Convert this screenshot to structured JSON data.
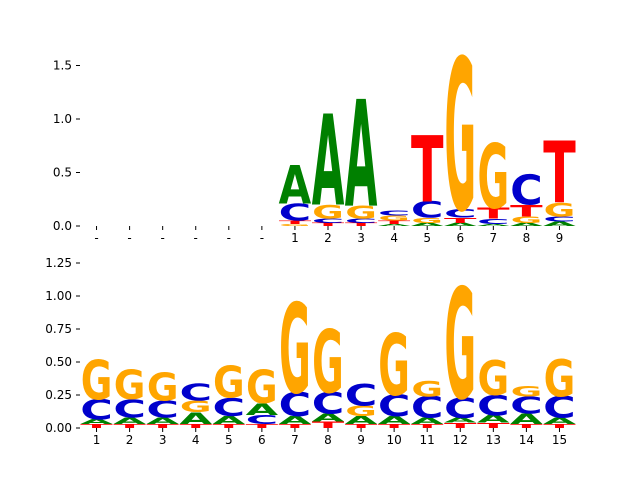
{
  "figure": {
    "background": "#ffffff"
  },
  "letter_colors": {
    "A": "#008000",
    "C": "#0000cc",
    "G": "#ffa500",
    "T": "#ff0000"
  },
  "chart_data": [
    {
      "type": "sequence_logo",
      "name": "top-sequence-logo",
      "title": "",
      "xlabel": "",
      "ylabel": "",
      "ylim": [
        0,
        1.66
      ],
      "grid": false,
      "legend": false,
      "ytick_values": [
        0,
        0.5,
        1.0,
        1.5
      ],
      "ytick_labels": [
        "0.0",
        "0.5",
        "1.0",
        "1.5"
      ],
      "columns": [
        {
          "label": "-",
          "stack": []
        },
        {
          "label": "-",
          "stack": []
        },
        {
          "label": "-",
          "stack": []
        },
        {
          "label": "-",
          "stack": []
        },
        {
          "label": "-",
          "stack": []
        },
        {
          "label": "-",
          "stack": []
        },
        {
          "label": "1",
          "stack": [
            {
              "letter": "G",
              "value": 0.02
            },
            {
              "letter": "T",
              "value": 0.03
            },
            {
              "letter": "C",
              "value": 0.16
            },
            {
              "letter": "A",
              "value": 0.36
            }
          ]
        },
        {
          "label": "2",
          "stack": [
            {
              "letter": "T",
              "value": 0.03
            },
            {
              "letter": "C",
              "value": 0.04
            },
            {
              "letter": "G",
              "value": 0.13
            },
            {
              "letter": "A",
              "value": 0.85
            }
          ]
        },
        {
          "label": "3",
          "stack": [
            {
              "letter": "T",
              "value": 0.03
            },
            {
              "letter": "C",
              "value": 0.04
            },
            {
              "letter": "G",
              "value": 0.12
            },
            {
              "letter": "A",
              "value": 1.0
            }
          ]
        },
        {
          "label": "4",
          "stack": [
            {
              "letter": "A",
              "value": 0.02
            },
            {
              "letter": "T",
              "value": 0.03
            },
            {
              "letter": "G",
              "value": 0.05
            },
            {
              "letter": "C",
              "value": 0.05
            }
          ]
        },
        {
          "label": "5",
          "stack": [
            {
              "letter": "A",
              "value": 0.03
            },
            {
              "letter": "G",
              "value": 0.05
            },
            {
              "letter": "C",
              "value": 0.15
            },
            {
              "letter": "T",
              "value": 0.62
            }
          ]
        },
        {
          "label": "6",
          "stack": [
            {
              "letter": "A",
              "value": 0.03
            },
            {
              "letter": "T",
              "value": 0.05
            },
            {
              "letter": "C",
              "value": 0.08
            },
            {
              "letter": "G",
              "value": 1.42
            }
          ]
        },
        {
          "label": "7",
          "stack": [
            {
              "letter": "A",
              "value": 0.02
            },
            {
              "letter": "C",
              "value": 0.05
            },
            {
              "letter": "T",
              "value": 0.1
            },
            {
              "letter": "G",
              "value": 0.6
            }
          ]
        },
        {
          "label": "8",
          "stack": [
            {
              "letter": "A",
              "value": 0.03
            },
            {
              "letter": "G",
              "value": 0.06
            },
            {
              "letter": "T",
              "value": 0.11
            },
            {
              "letter": "C",
              "value": 0.28
            }
          ]
        },
        {
          "label": "9",
          "stack": [
            {
              "letter": "A",
              "value": 0.04
            },
            {
              "letter": "C",
              "value": 0.05
            },
            {
              "letter": "G",
              "value": 0.13
            },
            {
              "letter": "T",
              "value": 0.58
            }
          ]
        }
      ]
    },
    {
      "type": "sequence_logo",
      "name": "bottom-sequence-logo",
      "title": "",
      "xlabel": "",
      "ylabel": "",
      "ylim": [
        0,
        1.3
      ],
      "grid": false,
      "legend": false,
      "ytick_values": [
        0,
        0.25,
        0.5,
        0.75,
        1.0,
        1.25
      ],
      "ytick_labels": [
        "0.00",
        "0.25",
        "0.50",
        "0.75",
        "1.00",
        "1.25"
      ],
      "columns": [
        {
          "label": "1",
          "stack": [
            {
              "letter": "T",
              "value": 0.03
            },
            {
              "letter": "A",
              "value": 0.04
            },
            {
              "letter": "C",
              "value": 0.15
            },
            {
              "letter": "G",
              "value": 0.3
            }
          ]
        },
        {
          "label": "2",
          "stack": [
            {
              "letter": "T",
              "value": 0.03
            },
            {
              "letter": "A",
              "value": 0.05
            },
            {
              "letter": "C",
              "value": 0.14
            },
            {
              "letter": "G",
              "value": 0.22
            }
          ]
        },
        {
          "label": "3",
          "stack": [
            {
              "letter": "T",
              "value": 0.03
            },
            {
              "letter": "A",
              "value": 0.05
            },
            {
              "letter": "C",
              "value": 0.13
            },
            {
              "letter": "G",
              "value": 0.21
            }
          ]
        },
        {
          "label": "4",
          "stack": [
            {
              "letter": "T",
              "value": 0.03
            },
            {
              "letter": "A",
              "value": 0.09
            },
            {
              "letter": "G",
              "value": 0.09
            },
            {
              "letter": "C",
              "value": 0.13
            }
          ]
        },
        {
          "label": "5",
          "stack": [
            {
              "letter": "T",
              "value": 0.03
            },
            {
              "letter": "A",
              "value": 0.06
            },
            {
              "letter": "C",
              "value": 0.14
            },
            {
              "letter": "G",
              "value": 0.24
            }
          ]
        },
        {
          "label": "6",
          "stack": [
            {
              "letter": "T",
              "value": 0.03
            },
            {
              "letter": "C",
              "value": 0.07
            },
            {
              "letter": "A",
              "value": 0.09
            },
            {
              "letter": "G",
              "value": 0.25
            }
          ]
        },
        {
          "label": "7",
          "stack": [
            {
              "letter": "T",
              "value": 0.03
            },
            {
              "letter": "A",
              "value": 0.06
            },
            {
              "letter": "C",
              "value": 0.18
            },
            {
              "letter": "G",
              "value": 0.68
            }
          ]
        },
        {
          "label": "8",
          "stack": [
            {
              "letter": "T",
              "value": 0.05
            },
            {
              "letter": "A",
              "value": 0.06
            },
            {
              "letter": "C",
              "value": 0.16
            },
            {
              "letter": "G",
              "value": 0.48
            }
          ]
        },
        {
          "label": "9",
          "stack": [
            {
              "letter": "T",
              "value": 0.03
            },
            {
              "letter": "A",
              "value": 0.06
            },
            {
              "letter": "G",
              "value": 0.08
            },
            {
              "letter": "C",
              "value": 0.16
            }
          ]
        },
        {
          "label": "10",
          "stack": [
            {
              "letter": "T",
              "value": 0.03
            },
            {
              "letter": "A",
              "value": 0.06
            },
            {
              "letter": "C",
              "value": 0.16
            },
            {
              "letter": "G",
              "value": 0.47
            }
          ]
        },
        {
          "label": "11",
          "stack": [
            {
              "letter": "T",
              "value": 0.03
            },
            {
              "letter": "A",
              "value": 0.05
            },
            {
              "letter": "C",
              "value": 0.16
            },
            {
              "letter": "G",
              "value": 0.12
            }
          ]
        },
        {
          "label": "12",
          "stack": [
            {
              "letter": "T",
              "value": 0.04
            },
            {
              "letter": "A",
              "value": 0.04
            },
            {
              "letter": "C",
              "value": 0.15
            },
            {
              "letter": "G",
              "value": 0.84
            }
          ]
        },
        {
          "label": "13",
          "stack": [
            {
              "letter": "T",
              "value": 0.04
            },
            {
              "letter": "A",
              "value": 0.06
            },
            {
              "letter": "C",
              "value": 0.15
            },
            {
              "letter": "G",
              "value": 0.26
            }
          ]
        },
        {
          "label": "14",
          "stack": [
            {
              "letter": "T",
              "value": 0.03
            },
            {
              "letter": "A",
              "value": 0.08
            },
            {
              "letter": "C",
              "value": 0.13
            },
            {
              "letter": "G",
              "value": 0.08
            }
          ]
        },
        {
          "label": "15",
          "stack": [
            {
              "letter": "T",
              "value": 0.03
            },
            {
              "letter": "A",
              "value": 0.05
            },
            {
              "letter": "C",
              "value": 0.16
            },
            {
              "letter": "G",
              "value": 0.28
            }
          ]
        }
      ]
    }
  ]
}
